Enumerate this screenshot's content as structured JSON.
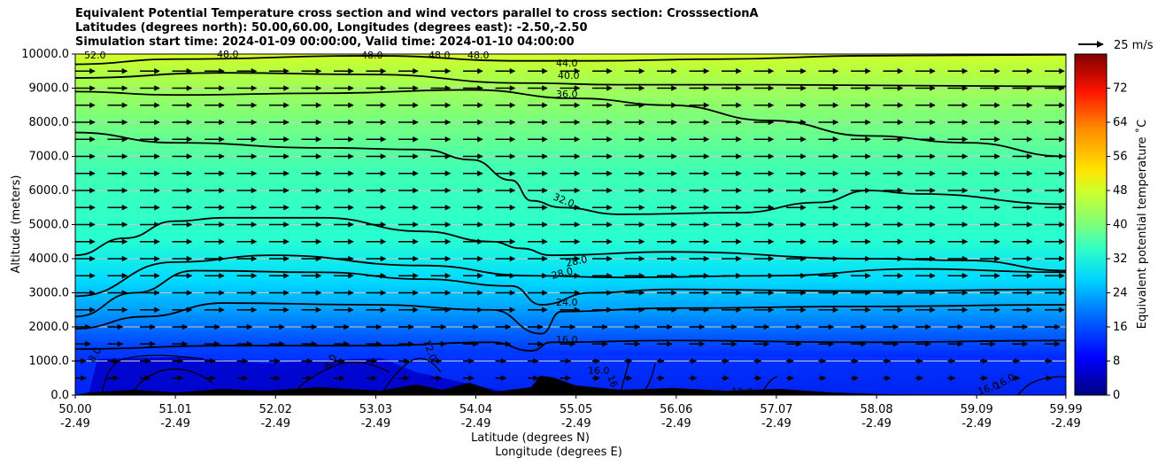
{
  "title_lines": [
    "Equivalent Potential Temperature cross section and wind vectors parallel to cross section: CrosssectionA",
    "Latitudes (degrees north): 50.00,60.00, Longitudes (degrees east): -2.50,-2.50",
    "Simulation start time: 2024-01-09 00:00:00, Valid time: 2024-01-10 04:00:00"
  ],
  "chart_data": {
    "type": "heatmap",
    "title": "Equivalent Potential Temperature cross section and wind vectors parallel to cross section: CrosssectionA",
    "xlabel_lat": "Latitude (degrees N)",
    "xlabel_lon": "Longitude (degrees E)",
    "ylabel": "Altitude (meters)",
    "ylim": [
      0,
      10000
    ],
    "xlim": [
      50.0,
      59.99
    ],
    "x_ticks": [
      {
        "lat": "50.00",
        "lon": "-2.49"
      },
      {
        "lat": "51.01",
        "lon": "-2.49"
      },
      {
        "lat": "52.02",
        "lon": "-2.49"
      },
      {
        "lat": "53.03",
        "lon": "-2.49"
      },
      {
        "lat": "54.04",
        "lon": "-2.49"
      },
      {
        "lat": "55.05",
        "lon": "-2.49"
      },
      {
        "lat": "56.06",
        "lon": "-2.49"
      },
      {
        "lat": "57.07",
        "lon": "-2.49"
      },
      {
        "lat": "58.08",
        "lon": "-2.49"
      },
      {
        "lat": "59.09",
        "lon": "-2.49"
      },
      {
        "lat": "59.99",
        "lon": "-2.49"
      }
    ],
    "y_ticks": [
      "0.0",
      "1000.0",
      "2000.0",
      "3000.0",
      "4000.0",
      "5000.0",
      "6000.0",
      "7000.0",
      "8000.0",
      "9000.0",
      "10000.0"
    ],
    "grid": "horizontal",
    "colorbar": {
      "label": "Equivalent potential temperature ˚C",
      "range": [
        0,
        80
      ],
      "ticks": [
        "0",
        "8",
        "16",
        "24",
        "32",
        "40",
        "48",
        "56",
        "64",
        "72"
      ],
      "colormap": "jet"
    },
    "quiver_key": {
      "label": "25 m/s",
      "placement": "top-right"
    },
    "contour_levels": [
      {
        "value": 16,
        "label": "16.0",
        "altitude_at_x": [
          [
            50.0,
            1350
          ],
          [
            51.5,
            1450
          ],
          [
            53.0,
            1450
          ],
          [
            54.2,
            1550
          ],
          [
            54.6,
            1300
          ],
          [
            54.8,
            1550
          ],
          [
            56.0,
            1600
          ],
          [
            58.0,
            1550
          ],
          [
            59.99,
            1600
          ]
        ]
      },
      {
        "value": 24,
        "label": "24.0",
        "altitude_at_x": [
          [
            50.0,
            1950
          ],
          [
            50.7,
            2300
          ],
          [
            51.5,
            2700
          ],
          [
            53.0,
            2650
          ],
          [
            54.2,
            2500
          ],
          [
            54.7,
            1800
          ],
          [
            54.9,
            2450
          ],
          [
            56.0,
            2550
          ],
          [
            58.0,
            2600
          ],
          [
            59.99,
            2650
          ]
        ]
      },
      {
        "value": 28,
        "label": "28.0",
        "altitude_at_x": [
          [
            50.0,
            2300
          ],
          [
            50.6,
            3000
          ],
          [
            51.2,
            3650
          ],
          [
            52.5,
            3600
          ],
          [
            53.5,
            3400
          ],
          [
            54.4,
            3200
          ],
          [
            54.7,
            2650
          ],
          [
            55.2,
            3000
          ],
          [
            56.0,
            3100
          ],
          [
            58.0,
            3050
          ],
          [
            59.99,
            3100
          ]
        ]
      },
      {
        "value": 28,
        "label": "28.0",
        "altitude_at_x": [
          [
            50.0,
            2900
          ],
          [
            51.0,
            3900
          ],
          [
            52.0,
            4100
          ],
          [
            53.5,
            3800
          ],
          [
            54.6,
            3500
          ],
          [
            55.5,
            3450
          ],
          [
            57.0,
            3500
          ],
          [
            58.5,
            3700
          ],
          [
            59.99,
            3600
          ]
        ]
      },
      {
        "value": 32,
        "label": "32.0",
        "altitude_at_x": [
          [
            50.0,
            4100
          ],
          [
            50.5,
            4600
          ],
          [
            51.0,
            5100
          ],
          [
            51.5,
            5200
          ],
          [
            52.5,
            5200
          ],
          [
            53.5,
            4800
          ],
          [
            54.2,
            4500
          ],
          [
            54.5,
            4300
          ],
          [
            54.8,
            4100
          ],
          [
            56.0,
            4200
          ],
          [
            58.0,
            4000
          ],
          [
            59.0,
            3950
          ],
          [
            59.99,
            3650
          ]
        ]
      },
      {
        "value": 32,
        "label": "32.0",
        "altitude_at_x": [
          [
            50.0,
            7700
          ],
          [
            51.0,
            7400
          ],
          [
            52.5,
            7250
          ],
          [
            53.5,
            7200
          ],
          [
            54.0,
            6900
          ],
          [
            54.4,
            6300
          ],
          [
            54.6,
            5700
          ],
          [
            54.9,
            5500
          ],
          [
            55.5,
            5300
          ],
          [
            56.7,
            5350
          ],
          [
            57.5,
            5650
          ],
          [
            58.0,
            6000
          ],
          [
            58.5,
            5900
          ],
          [
            59.99,
            5600
          ]
        ]
      },
      {
        "value": 36,
        "label": "36.0",
        "altitude_at_x": [
          [
            50.0,
            8900
          ],
          [
            51.0,
            8800
          ],
          [
            52.5,
            8850
          ],
          [
            54.0,
            8950
          ],
          [
            55.05,
            8700
          ],
          [
            56.0,
            8500
          ],
          [
            57.0,
            8050
          ],
          [
            58.0,
            7600
          ],
          [
            59.0,
            7400
          ],
          [
            59.99,
            7000
          ]
        ]
      },
      {
        "value": 40,
        "label": "40.0",
        "altitude_at_x": [
          [
            50.0,
            9300
          ],
          [
            51.5,
            9450
          ],
          [
            53.0,
            9400
          ],
          [
            54.5,
            9150
          ],
          [
            55.5,
            9100
          ],
          [
            57.0,
            9100
          ],
          [
            59.99,
            9050
          ]
        ]
      },
      {
        "value": 44,
        "label": "44.0",
        "altitude_at_x": [
          [
            50.0,
            9700
          ],
          [
            51.0,
            9850
          ],
          [
            53.0,
            9950
          ],
          [
            54.5,
            9800
          ],
          [
            55.2,
            9800
          ],
          [
            56.5,
            9850
          ],
          [
            58.0,
            9950
          ],
          [
            59.99,
            9980
          ]
        ]
      }
    ],
    "contour_annotations": [
      "52.0",
      "48.0",
      "48.0",
      "48.0",
      "48.0",
      "44.0",
      "40.0",
      "36.0",
      "32.0",
      "28.0",
      "28.0",
      "24.0",
      "16.0",
      "16.0",
      "12.0",
      "12.0",
      "8.0",
      "8.0",
      "16.0",
      "16.0",
      "16.0"
    ],
    "wind_vectors": {
      "direction": "parallel, northward (positive x)",
      "typical_speed_ms": 20
    }
  }
}
